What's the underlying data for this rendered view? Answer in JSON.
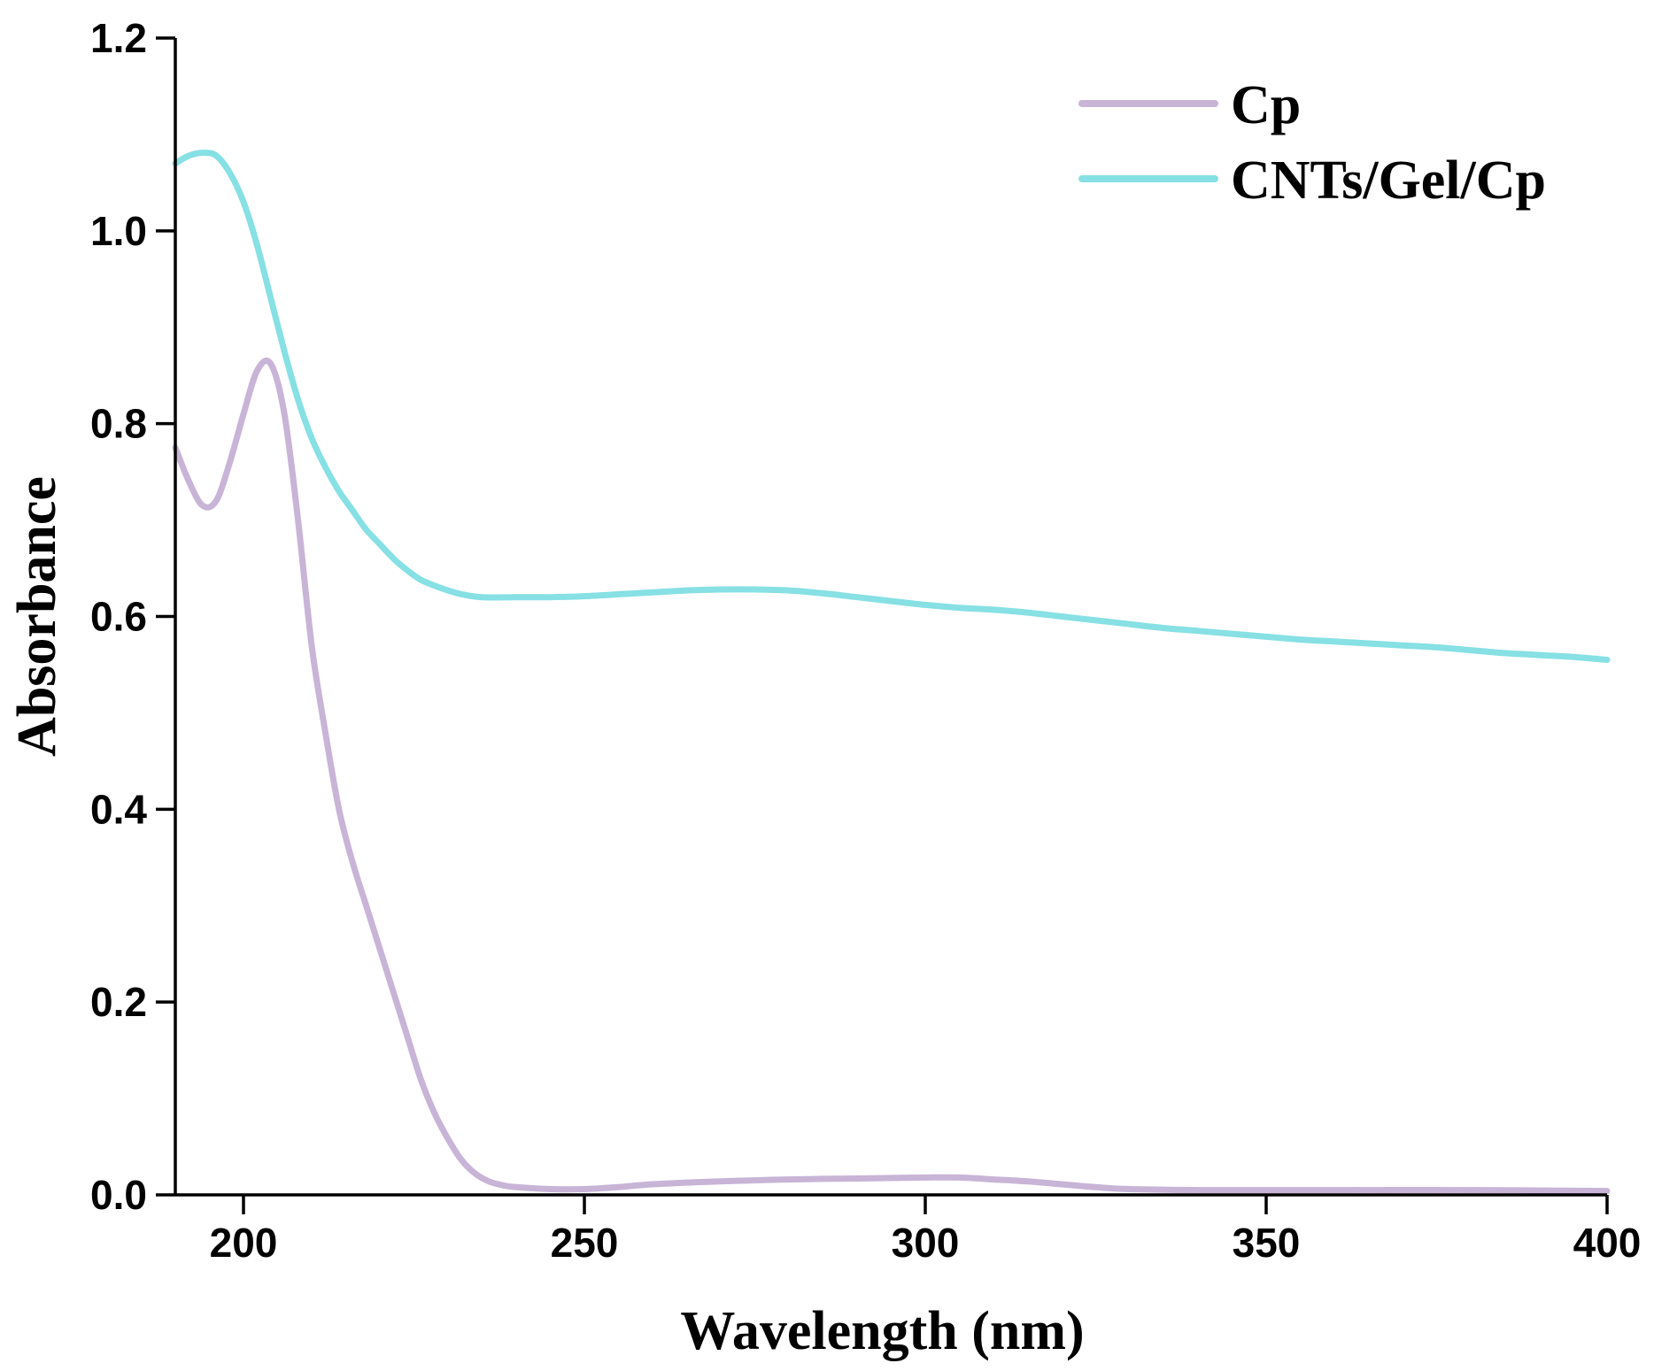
{
  "chart_data": {
    "type": "line",
    "xlabel": "Wavelength (nm)",
    "ylabel": "Absorbance",
    "xlim": [
      190,
      400
    ],
    "ylim": [
      0,
      1.2
    ],
    "x_ticks": [
      200,
      250,
      300,
      350,
      400
    ],
    "x_tick_labels": [
      "200",
      "250",
      "300",
      "350",
      "400"
    ],
    "y_ticks": [
      0,
      0.2,
      0.4,
      0.6,
      0.8,
      1.0,
      1.2
    ],
    "y_tick_labels": [
      "0.0",
      "0.2",
      "0.4",
      "0.6",
      "0.8",
      "1.0",
      "1.2"
    ],
    "legend_position": "top-right",
    "grid": false,
    "series": [
      {
        "name": "Cp",
        "color": "#c8b4d6",
        "points": [
          [
            190,
            0.775
          ],
          [
            192,
            0.74
          ],
          [
            194,
            0.715
          ],
          [
            196,
            0.72
          ],
          [
            198,
            0.76
          ],
          [
            200,
            0.81
          ],
          [
            202,
            0.855
          ],
          [
            204,
            0.862
          ],
          [
            206,
            0.81
          ],
          [
            208,
            0.7
          ],
          [
            210,
            0.57
          ],
          [
            212,
            0.48
          ],
          [
            214,
            0.4
          ],
          [
            216,
            0.345
          ],
          [
            218,
            0.3
          ],
          [
            220,
            0.255
          ],
          [
            222,
            0.21
          ],
          [
            224,
            0.165
          ],
          [
            226,
            0.12
          ],
          [
            228,
            0.085
          ],
          [
            230,
            0.058
          ],
          [
            232,
            0.036
          ],
          [
            234,
            0.022
          ],
          [
            236,
            0.014
          ],
          [
            238,
            0.01
          ],
          [
            240,
            0.008
          ],
          [
            245,
            0.006
          ],
          [
            250,
            0.006
          ],
          [
            255,
            0.008
          ],
          [
            260,
            0.011
          ],
          [
            270,
            0.014
          ],
          [
            280,
            0.016
          ],
          [
            290,
            0.017
          ],
          [
            300,
            0.018
          ],
          [
            305,
            0.018
          ],
          [
            310,
            0.016
          ],
          [
            315,
            0.014
          ],
          [
            320,
            0.011
          ],
          [
            325,
            0.008
          ],
          [
            330,
            0.006
          ],
          [
            340,
            0.005
          ],
          [
            350,
            0.005
          ],
          [
            360,
            0.005
          ],
          [
            380,
            0.005
          ],
          [
            400,
            0.004
          ]
        ]
      },
      {
        "name": "CNTs/Gel/Cp",
        "color": "#86e0e4",
        "points": [
          [
            190,
            1.07
          ],
          [
            192,
            1.078
          ],
          [
            194,
            1.081
          ],
          [
            196,
            1.078
          ],
          [
            198,
            1.06
          ],
          [
            200,
            1.03
          ],
          [
            202,
            0.985
          ],
          [
            204,
            0.93
          ],
          [
            206,
            0.875
          ],
          [
            208,
            0.825
          ],
          [
            210,
            0.785
          ],
          [
            212,
            0.755
          ],
          [
            214,
            0.73
          ],
          [
            216,
            0.71
          ],
          [
            218,
            0.69
          ],
          [
            220,
            0.675
          ],
          [
            222,
            0.66
          ],
          [
            224,
            0.648
          ],
          [
            226,
            0.638
          ],
          [
            228,
            0.632
          ],
          [
            230,
            0.627
          ],
          [
            232,
            0.623
          ],
          [
            235,
            0.62
          ],
          [
            240,
            0.62
          ],
          [
            245,
            0.62
          ],
          [
            250,
            0.621
          ],
          [
            255,
            0.623
          ],
          [
            260,
            0.625
          ],
          [
            265,
            0.627
          ],
          [
            270,
            0.628
          ],
          [
            275,
            0.628
          ],
          [
            280,
            0.627
          ],
          [
            285,
            0.624
          ],
          [
            290,
            0.62
          ],
          [
            295,
            0.616
          ],
          [
            300,
            0.612
          ],
          [
            305,
            0.609
          ],
          [
            310,
            0.607
          ],
          [
            315,
            0.604
          ],
          [
            320,
            0.6
          ],
          [
            325,
            0.596
          ],
          [
            330,
            0.592
          ],
          [
            335,
            0.588
          ],
          [
            340,
            0.585
          ],
          [
            345,
            0.582
          ],
          [
            350,
            0.579
          ],
          [
            355,
            0.576
          ],
          [
            360,
            0.574
          ],
          [
            365,
            0.572
          ],
          [
            370,
            0.57
          ],
          [
            375,
            0.568
          ],
          [
            380,
            0.565
          ],
          [
            385,
            0.562
          ],
          [
            390,
            0.56
          ],
          [
            395,
            0.558
          ],
          [
            400,
            0.555
          ]
        ]
      }
    ]
  }
}
